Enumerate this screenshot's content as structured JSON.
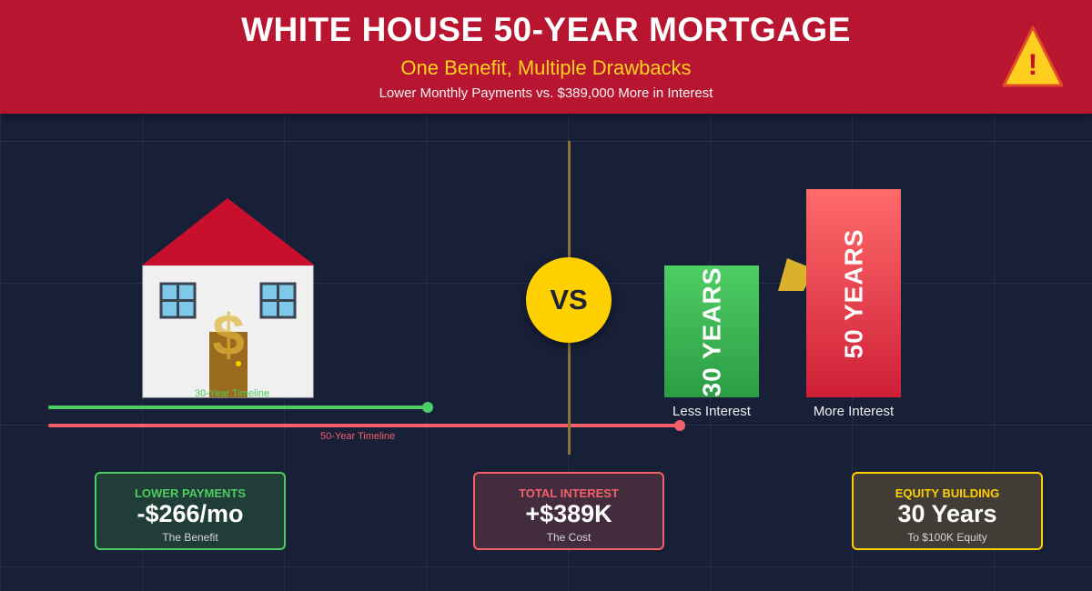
{
  "header": {
    "title": "WHITE HOUSE 50-YEAR MORTGAGE",
    "subtitle": "One Benefit, Multiple Drawbacks",
    "tagline": "Lower Monthly Payments vs. $389,000 More in Interest",
    "warning_icon": "warning-triangle-icon",
    "warning_symbol": "!"
  },
  "vs_label": "VS",
  "house": {
    "icon": "house-icon",
    "dollar_symbol": "$",
    "roof_color": "#c8102e",
    "wall_color": "#f0f0f0"
  },
  "timelines": {
    "thirty_label": "30-Year Timeline",
    "fifty_label": "50-Year Timeline",
    "thirty_color": "#4ccc62",
    "fifty_color": "#f2616a"
  },
  "bars": {
    "thirty": {
      "text": "30 YEARS",
      "caption": "Less Interest",
      "years": 30
    },
    "fifty": {
      "text": "50 YEARS",
      "caption": "More Interest",
      "years": 50
    },
    "arrow_icon": "arrow-right-icon"
  },
  "cards": {
    "payments": {
      "label": "LOWER PAYMENTS",
      "value": "-$266/mo",
      "note": "The Benefit"
    },
    "interest": {
      "label": "TOTAL INTEREST",
      "value": "+$389K",
      "note": "The Cost"
    },
    "equity": {
      "label": "EQUITY BUILDING",
      "value": "30 Years",
      "note": "To $100K Equity"
    }
  },
  "colors": {
    "header_red": "#b81530",
    "accent_yellow": "#ffd000",
    "background": "#182038"
  }
}
